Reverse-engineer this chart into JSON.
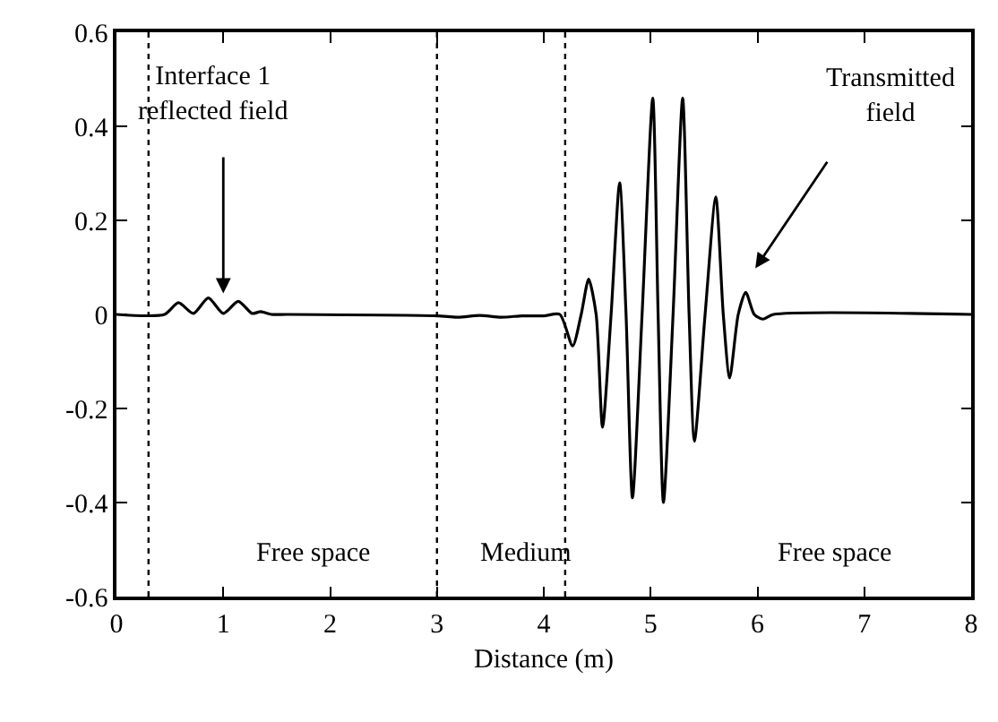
{
  "chart_data": {
    "type": "line",
    "xlabel": "Distance (m)",
    "x": [
      0,
      0.45,
      0.58,
      0.72,
      0.86,
      1.0,
      1.14,
      1.27,
      1.35,
      1.45,
      1.6,
      3.0,
      3.2,
      3.4,
      3.6,
      3.8,
      4.0,
      4.15,
      4.27,
      4.35,
      4.42,
      4.49,
      4.55,
      4.63,
      4.71,
      4.77,
      4.83,
      4.92,
      5.02,
      5.07,
      5.12,
      5.21,
      5.3,
      5.36,
      5.41,
      5.51,
      5.61,
      5.68,
      5.74,
      5.82,
      5.89,
      5.97,
      6.05,
      6.15,
      8
    ],
    "series": [
      {
        "color": "#000000",
        "values": [
          0,
          0,
          0.025,
          0.002,
          0.035,
          0.002,
          0.028,
          0.002,
          0.006,
          0,
          0,
          -0.003,
          -0.006,
          -0.002,
          -0.006,
          -0.003,
          -0.003,
          0,
          -0.067,
          0,
          0.075,
          0,
          -0.24,
          0,
          0.28,
          0,
          -0.39,
          0,
          0.46,
          0,
          -0.4,
          0,
          0.46,
          0,
          -0.27,
          0,
          0.25,
          0,
          -0.135,
          0,
          0.047,
          0,
          -0.01,
          0,
          0
        ]
      }
    ],
    "xlim": [
      0,
      8
    ],
    "xticks": [
      0,
      1,
      2,
      3,
      4,
      5,
      6,
      7,
      8
    ],
    "ylim": [
      -0.6,
      0.6
    ],
    "yticks": [
      -0.6,
      -0.4,
      -0.2,
      0,
      0.2,
      0.4,
      0.6
    ],
    "ref_lines": [
      {
        "axis": "x",
        "value": 0.3,
        "line_style": "dotted",
        "color": "#000000"
      },
      {
        "axis": "x",
        "value": 3,
        "line_style": "dotted",
        "color": "#000000"
      },
      {
        "axis": "x",
        "value": 4.2,
        "line_style": "dotted",
        "color": "#000000"
      }
    ],
    "annotations": [
      "Interface 1\nreflected field",
      "Transmitted\nfield",
      "Free space",
      "Medium",
      "Free space"
    ],
    "marker": "none",
    "line_style": "solid"
  }
}
